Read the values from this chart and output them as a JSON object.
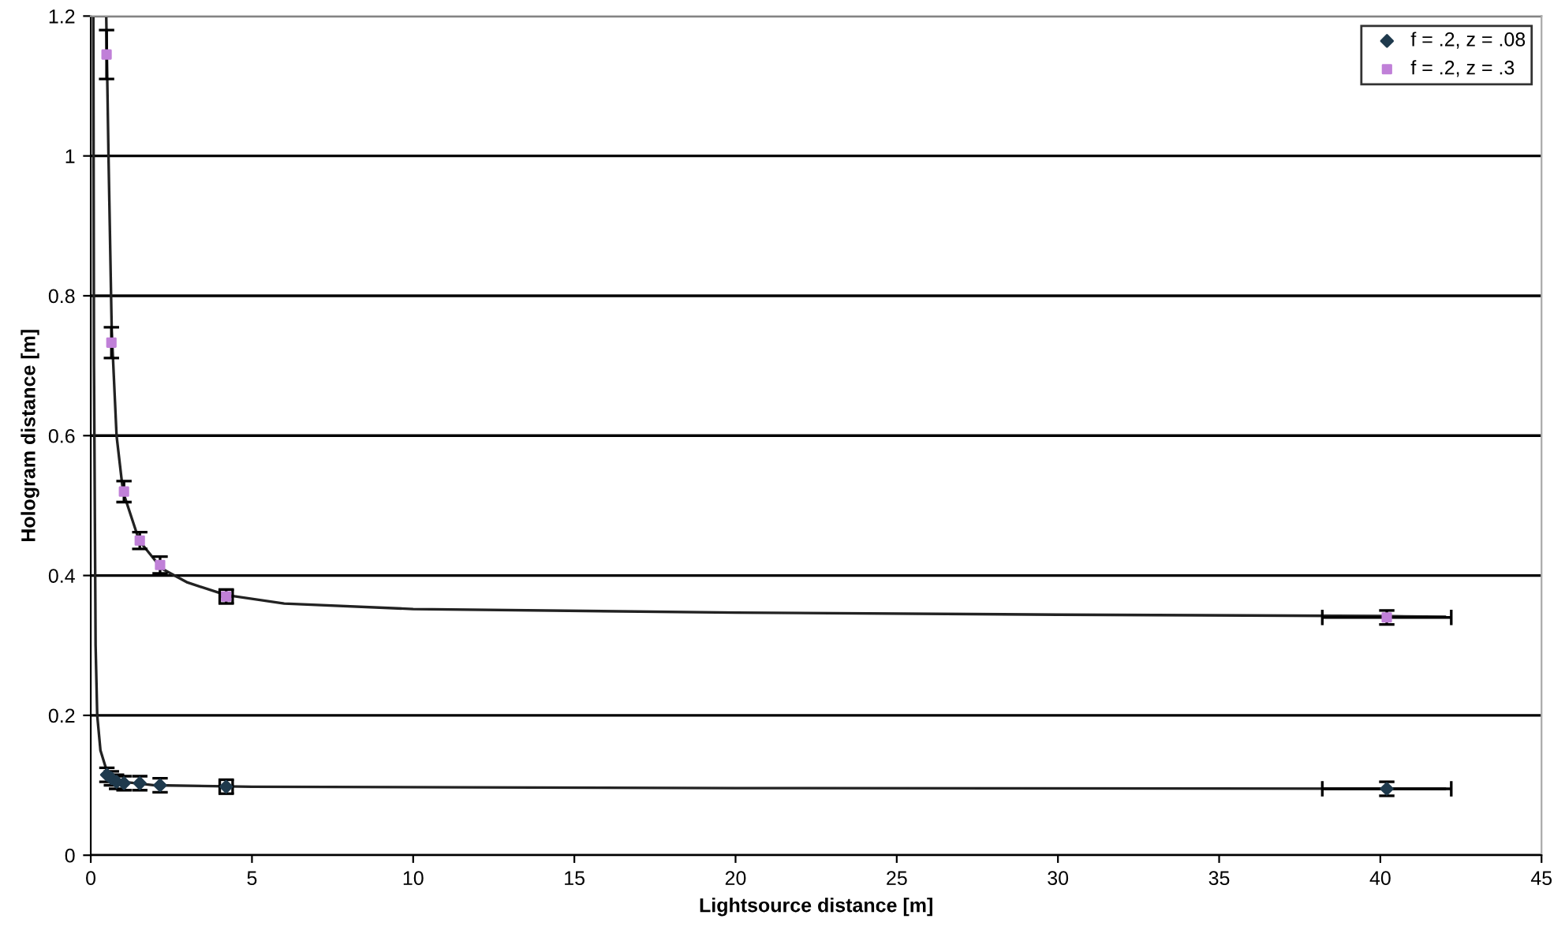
{
  "chart_data": {
    "type": "scatter",
    "xlabel": "Lightsource distance [m]",
    "ylabel": "Hologram distance [m]",
    "xlim": [
      0,
      45
    ],
    "ylim": [
      0,
      1.2
    ],
    "xticks": [
      0,
      5,
      10,
      15,
      20,
      25,
      30,
      35,
      40,
      45
    ],
    "yticks": [
      0,
      0.2,
      0.4,
      0.6,
      0.8,
      1,
      1.2
    ],
    "grid": "y",
    "legend": "top right",
    "series": [
      {
        "type": "line",
        "color": "#222222",
        "x": [
          0.08,
          0.1,
          0.15,
          0.2,
          0.3,
          0.5,
          1,
          2,
          5,
          20,
          42
        ],
        "values": [
          1.2,
          0.7,
          0.3,
          0.2,
          0.15,
          0.12,
          0.105,
          0.1,
          0.098,
          0.096,
          0.095
        ]
      },
      {
        "type": "line",
        "color": "#222222",
        "x": [
          0.48,
          0.55,
          0.65,
          0.8,
          1.0,
          1.5,
          2.2,
          3,
          4.2,
          6,
          10,
          20,
          30,
          40,
          42
        ],
        "values": [
          1.2,
          1.0,
          0.75,
          0.6,
          0.52,
          0.45,
          0.41,
          0.39,
          0.372,
          0.36,
          0.352,
          0.347,
          0.344,
          0.342,
          0.341
        ]
      },
      {
        "name": "f = .2, z = .08",
        "color": "#1f3a4d",
        "marker": "diamond",
        "x": [
          0.5,
          0.64,
          0.8,
          1.03,
          1.52,
          2.15,
          4.2,
          40.2
        ],
        "values": [
          0.115,
          0.11,
          0.105,
          0.103,
          0.103,
          0.1,
          0.098,
          0.095
        ],
        "errors": [
          0.01,
          0.01,
          0.01,
          0.01,
          0.01,
          0.01,
          0.01,
          0.01
        ],
        "xerrors": [
          null,
          null,
          null,
          null,
          null,
          null,
          0.2,
          2
        ]
      },
      {
        "name": "f = .2, z = .3",
        "color": "#c080d8",
        "marker": "square",
        "x": [
          0.49,
          0.64,
          1.03,
          1.52,
          2.15,
          4.2,
          40.2
        ],
        "values": [
          1.145,
          0.733,
          0.52,
          0.45,
          0.415,
          0.37,
          0.34
        ],
        "errors": [
          0.035,
          0.022,
          0.015,
          0.012,
          0.012,
          0.01,
          0.01
        ],
        "xerrors": [
          null,
          null,
          null,
          null,
          null,
          0.2,
          2
        ]
      }
    ]
  }
}
